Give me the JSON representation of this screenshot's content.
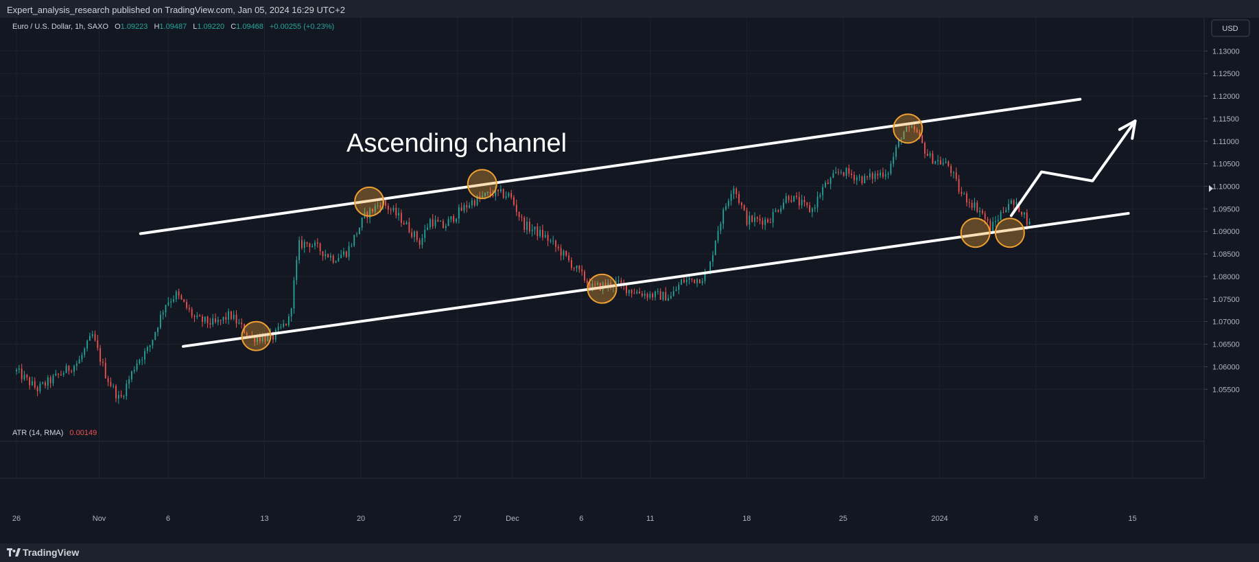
{
  "header": {
    "publisher_line": "Expert_analysis_research published on TradingView.com, Jan 05, 2024 16:29 UTC+2"
  },
  "legend": {
    "symbol": "Euro / U.S. Dollar, 1h, SAXO",
    "open_label": "O",
    "open": "1.09223",
    "high_label": "H",
    "high": "1.09487",
    "low_label": "L",
    "low": "1.09220",
    "close_label": "C",
    "close": "1.09468",
    "change": "+0.00255 (+0.23%)"
  },
  "currency_button": "USD",
  "indicator": {
    "label": "ATR (14, RMA)",
    "value": "0.00149"
  },
  "annotation": "Ascending channel",
  "brand": "TradingView",
  "colors": {
    "up": "#26a69a",
    "down": "#ef5350",
    "channel": "#ffffff",
    "marker": "#f0a030",
    "background": "#131722"
  },
  "chart_data": {
    "type": "candlestick",
    "symbol": "EURUSD",
    "timeframe": "1h",
    "y_ticks": [
      "1.13000",
      "1.12500",
      "1.12000",
      "1.11500",
      "1.11000",
      "1.10500",
      "1.10000",
      "1.09500",
      "1.09000",
      "1.08500",
      "1.08000",
      "1.07500",
      "1.07000",
      "1.06500",
      "1.06000",
      "1.05500"
    ],
    "ylim": [
      1.0485,
      1.134
    ],
    "x_ticks": [
      {
        "label": "26",
        "day": 0
      },
      {
        "label": "Nov",
        "day": 6
      },
      {
        "label": "6",
        "day": 11
      },
      {
        "label": "13",
        "day": 18
      },
      {
        "label": "20",
        "day": 25
      },
      {
        "label": "27",
        "day": 32
      },
      {
        "label": "Dec",
        "day": 36
      },
      {
        "label": "6",
        "day": 41
      },
      {
        "label": "11",
        "day": 46
      },
      {
        "label": "18",
        "day": 53
      },
      {
        "label": "25",
        "day": 60
      },
      {
        "label": "2024",
        "day": 67
      },
      {
        "label": "8",
        "day": 74
      },
      {
        "label": "15",
        "day": 81
      }
    ],
    "xlim_days": [
      -0.7,
      86.2
    ],
    "price_path": [
      [
        0,
        1.059
      ],
      [
        1.5,
        1.055
      ],
      [
        3,
        1.058
      ],
      [
        4.5,
        1.061
      ],
      [
        5.5,
        1.067
      ],
      [
        6.5,
        1.058
      ],
      [
        7.5,
        1.0525
      ],
      [
        8.7,
        1.061
      ],
      [
        9.6,
        1.064
      ],
      [
        10.8,
        1.074
      ],
      [
        11.6,
        1.076
      ],
      [
        13,
        1.0705
      ],
      [
        14.5,
        1.0695
      ],
      [
        15.5,
        1.0715
      ],
      [
        17,
        1.0665
      ],
      [
        18.6,
        1.0665
      ],
      [
        19.8,
        1.0705
      ],
      [
        20.5,
        1.087
      ],
      [
        21.2,
        1.0875
      ],
      [
        23,
        1.084
      ],
      [
        24,
        1.0855
      ],
      [
        25.3,
        1.0935
      ],
      [
        26.5,
        1.0965
      ],
      [
        28,
        1.0925
      ],
      [
        29.3,
        1.0875
      ],
      [
        30,
        1.0925
      ],
      [
        31,
        1.091
      ],
      [
        32,
        1.094
      ],
      [
        33,
        1.0965
      ],
      [
        34.5,
        1.0985
      ],
      [
        35.8,
        1.098
      ],
      [
        36.8,
        1.0915
      ],
      [
        38.3,
        1.089
      ],
      [
        39.5,
        1.0855
      ],
      [
        41.8,
        1.0775
      ],
      [
        43.5,
        1.0785
      ],
      [
        44.5,
        1.077
      ],
      [
        45.8,
        1.076
      ],
      [
        47.5,
        1.0755
      ],
      [
        48.3,
        1.079
      ],
      [
        49.5,
        1.0795
      ],
      [
        50.2,
        1.0805
      ],
      [
        50.8,
        1.0895
      ],
      [
        52,
        1.1005
      ],
      [
        53,
        1.0925
      ],
      [
        54.6,
        1.0925
      ],
      [
        56,
        1.098
      ],
      [
        57.7,
        1.0945
      ],
      [
        58.5,
        1.0995
      ],
      [
        59.8,
        1.1035
      ],
      [
        61.5,
        1.1015
      ],
      [
        63.3,
        1.1035
      ],
      [
        64.3,
        1.112
      ],
      [
        65.2,
        1.1125
      ],
      [
        66.2,
        1.1065
      ],
      [
        67.7,
        1.1045
      ],
      [
        68.5,
        1.0985
      ],
      [
        70,
        1.0945
      ],
      [
        70.7,
        1.0905
      ],
      [
        72,
        1.0965
      ],
      [
        72.9,
        1.095
      ],
      [
        73.7,
        1.0905
      ]
    ],
    "channel_lines": [
      {
        "name": "upper",
        "from": {
          "day": 9,
          "price": 1.0895
        },
        "to": {
          "day": 77.2,
          "price": 1.1193
        }
      },
      {
        "name": "lower",
        "from": {
          "day": 12.1,
          "price": 1.0645
        },
        "to": {
          "day": 80.7,
          "price": 1.094
        }
      }
    ],
    "touch_points": [
      {
        "day": 17.4,
        "price": 1.0668
      },
      {
        "day": 25.6,
        "price": 1.0966
      },
      {
        "day": 33.8,
        "price": 1.1005
      },
      {
        "day": 42.5,
        "price": 1.0773
      },
      {
        "day": 64.7,
        "price": 1.1128
      },
      {
        "day": 69.6,
        "price": 1.0897
      },
      {
        "day": 72.1,
        "price": 1.0897
      }
    ],
    "projection_path": [
      {
        "day": 72.2,
        "price": 1.0935
      },
      {
        "day": 74.4,
        "price": 1.1032
      },
      {
        "day": 78.1,
        "price": 1.1012
      },
      {
        "day": 81.2,
        "price": 1.1145
      }
    ],
    "current_price_marker": 1.0995
  }
}
